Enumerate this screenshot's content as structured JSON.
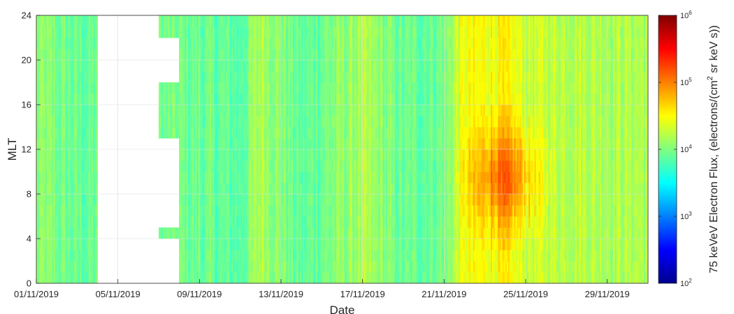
{
  "chart_data": {
    "type": "heatmap",
    "xlabel": "Date",
    "ylabel": "MLT",
    "x_tick_labels": [
      "01/11/2019",
      "05/11/2019",
      "09/11/2019",
      "13/11/2019",
      "17/11/2019",
      "21/11/2019",
      "25/11/2019",
      "29/11/2019"
    ],
    "x_range": [
      "01/11/2019",
      "01/12/2019"
    ],
    "y_ticks": [
      0,
      4,
      8,
      12,
      16,
      20,
      24
    ],
    "y_tick_labels": [
      "0",
      "4",
      "8",
      "12",
      "16",
      "20",
      "24"
    ],
    "ylim": [
      0,
      24
    ],
    "grid": true,
    "colorbar": {
      "label": "75 keVeV Electron Flux, (electrons/(cm² sr keV s))",
      "label_parts": [
        "75 keVeV Electron Flux, (electrons/(cm",
        "2",
        " sr keV s))"
      ],
      "scale": "log",
      "range": [
        100,
        1000000
      ],
      "ticks": [
        {
          "base": "10",
          "exp": "2"
        },
        {
          "base": "10",
          "exp": "3"
        },
        {
          "base": "10",
          "exp": "4"
        },
        {
          "base": "10",
          "exp": "5"
        },
        {
          "base": "10",
          "exp": "6"
        }
      ],
      "colormap": "jet"
    },
    "data_gaps": [
      {
        "from": "04/11/2019",
        "to": "07/11/2019",
        "mlt": [
          0,
          24
        ]
      },
      {
        "from": "07/11/2019",
        "to": "08/11/2019",
        "mlt": [
          0,
          4
        ]
      },
      {
        "from": "07/11/2019",
        "to": "08/11/2019",
        "mlt": [
          5,
          13
        ]
      },
      {
        "from": "07/11/2019",
        "to": "08/11/2019",
        "mlt": [
          18,
          22
        ]
      }
    ],
    "flux_profile": [
      {
        "date": "01/11/2019",
        "log10_flux": 4.05
      },
      {
        "date": "03/11/2019",
        "log10_flux": 3.9
      },
      {
        "date": "08/11/2019",
        "log10_flux": 3.95
      },
      {
        "date": "11/11/2019",
        "log10_flux": 3.85
      },
      {
        "date": "12/11/2019",
        "log10_flux": 4.2
      },
      {
        "date": "14/11/2019",
        "log10_flux": 3.85
      },
      {
        "date": "17/11/2019",
        "log10_flux": 4.15
      },
      {
        "date": "19/11/2019",
        "log10_flux": 3.9
      },
      {
        "date": "21/11/2019",
        "log10_flux": 3.95
      },
      {
        "date": "22/11/2019",
        "log10_flux": 4.45
      },
      {
        "date": "24/11/2019",
        "log10_flux": 4.5
      },
      {
        "date": "25/11/2019",
        "log10_flux": 4.3
      },
      {
        "date": "27/11/2019",
        "log10_flux": 4.25
      },
      {
        "date": "29/11/2019",
        "log10_flux": 4.2
      },
      {
        "date": "30/11/2019",
        "log10_flux": 4.2
      }
    ],
    "enhancement": {
      "from": "22/11/2019",
      "to": "26/11/2019",
      "mlt": [
        4,
        15
      ],
      "peak_log10_flux": 5.1
    }
  }
}
